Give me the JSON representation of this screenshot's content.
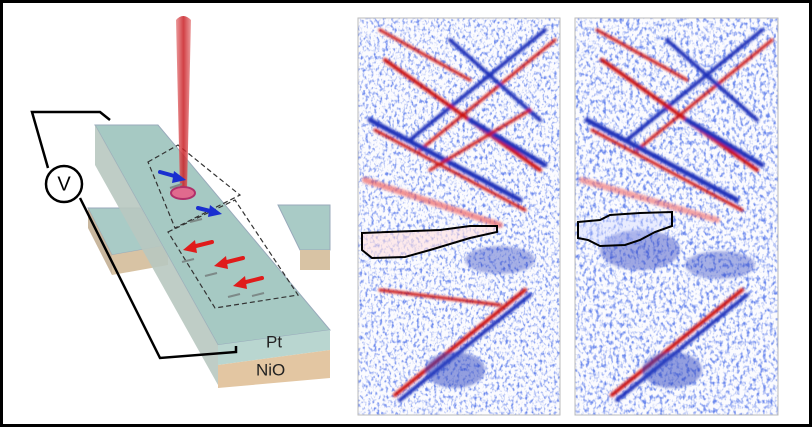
{
  "labels": {
    "voltage": "V",
    "top_layer": "Pt",
    "bottom_layer": "NiO"
  }
}
